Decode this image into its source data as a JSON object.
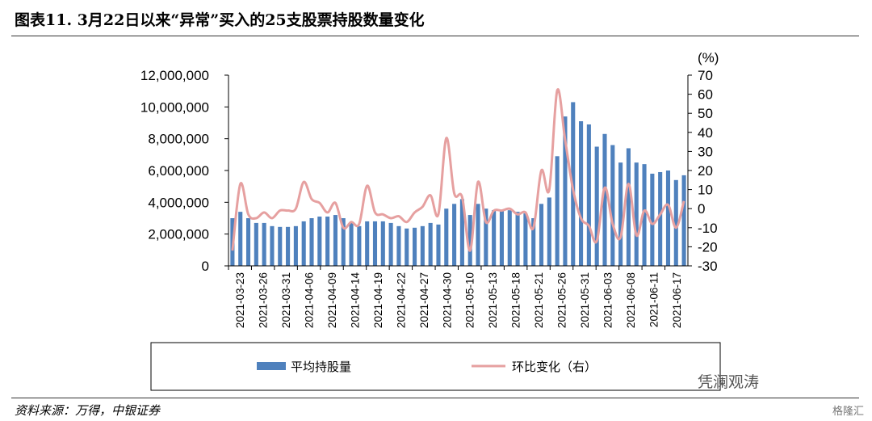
{
  "title": "图表11. 3月22日以来“异常”买入的25支股票持股数量变化",
  "source": "资料来源：万得，中银证券",
  "watermark": "凭澜观涛",
  "watermark2": "格隆汇",
  "chart_data": {
    "type": "bar+line",
    "xlabel_ticks": [
      "2021-03-23",
      "2021-03-26",
      "2021-03-31",
      "2021-04-06",
      "2021-04-09",
      "2021-04-14",
      "2021-04-19",
      "2021-04-22",
      "2021-04-27",
      "2021-04-30",
      "2021-05-10",
      "2021-05-13",
      "2021-05-18",
      "2021-05-21",
      "2021-05-26",
      "2021-05-31",
      "2021-06-03",
      "2021-06-08",
      "2021-06-11",
      "2021-06-17"
    ],
    "left_axis": {
      "ylim": [
        0,
        12000000
      ],
      "ticks": [
        "0",
        "2,000,000",
        "4,000,000",
        "6,000,000",
        "8,000,000",
        "10,000,000",
        "12,000,000"
      ]
    },
    "right_axis": {
      "unit": "(%)",
      "ylim": [
        -30,
        70
      ],
      "ticks": [
        "-30",
        "-20",
        "-10",
        "0",
        "10",
        "20",
        "30",
        "40",
        "50",
        "60",
        "70"
      ]
    },
    "series": [
      {
        "name": "平均持股量",
        "kind": "bar",
        "color": "#4f81bd",
        "values": [
          3000000,
          3400000,
          3000000,
          2700000,
          2700000,
          2500000,
          2450000,
          2450000,
          2500000,
          2800000,
          3000000,
          3100000,
          3100000,
          3200000,
          3000000,
          2700000,
          2500000,
          2800000,
          2800000,
          2800000,
          2700000,
          2500000,
          2350000,
          2400000,
          2500000,
          2700000,
          2600000,
          3600000,
          3900000,
          4200000,
          3200000,
          3900000,
          3600000,
          3500000,
          3500000,
          3500000,
          3400000,
          3300000,
          3000000,
          3900000,
          4300000,
          6900000,
          9400000,
          10300000,
          9100000,
          8900000,
          7500000,
          8300000,
          7600000,
          6500000,
          7400000,
          6500000,
          6400000,
          5800000,
          5900000,
          6000000,
          5400000,
          5700000
        ]
      },
      {
        "name": "环比变化（右）",
        "kind": "line",
        "color": "#e6a0a0",
        "values": [
          -22,
          13,
          -3,
          -5,
          -2,
          -5,
          -1,
          -1,
          0,
          14,
          5,
          3,
          -2,
          3,
          -10,
          -7,
          -8,
          12,
          -2,
          -3,
          -5,
          -4,
          -7,
          -2,
          1,
          7,
          -3,
          37,
          8,
          6,
          -22,
          14,
          -7,
          -1,
          -1,
          0,
          -3,
          -2,
          -10,
          20,
          10,
          62,
          36,
          10,
          -5,
          -9,
          -17,
          11,
          -8,
          -15,
          13,
          -14,
          -1,
          -8,
          -3,
          2,
          -10,
          4
        ]
      }
    ]
  }
}
